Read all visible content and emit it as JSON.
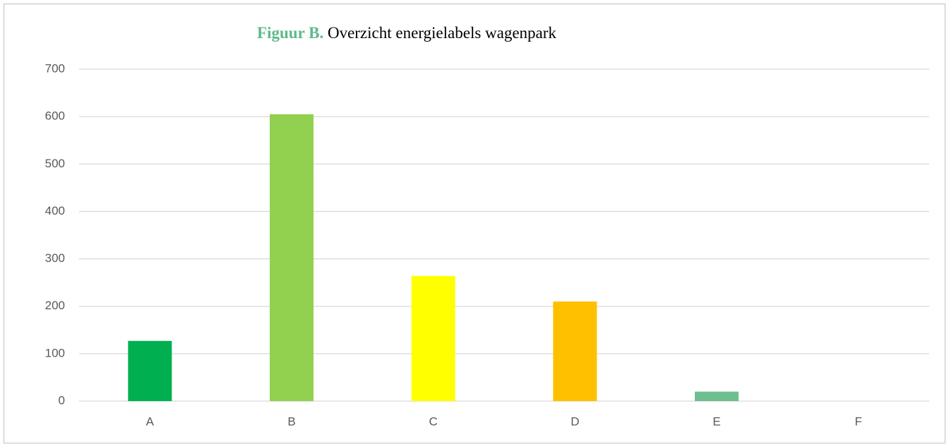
{
  "chart_data": {
    "type": "bar",
    "title_label": "Figuur B.",
    "title": "Overzicht energielabels wagenpark",
    "categories": [
      "A",
      "B",
      "C",
      "D",
      "E",
      "F"
    ],
    "values": [
      127,
      605,
      264,
      210,
      20,
      0
    ],
    "colors": [
      "#00b050",
      "#92d050",
      "#ffff00",
      "#ffc000",
      "#6dbf8f",
      null
    ],
    "ylim": [
      0,
      700
    ],
    "yticks": [
      0,
      100,
      200,
      300,
      400,
      500,
      600,
      700
    ],
    "grid": true
  }
}
